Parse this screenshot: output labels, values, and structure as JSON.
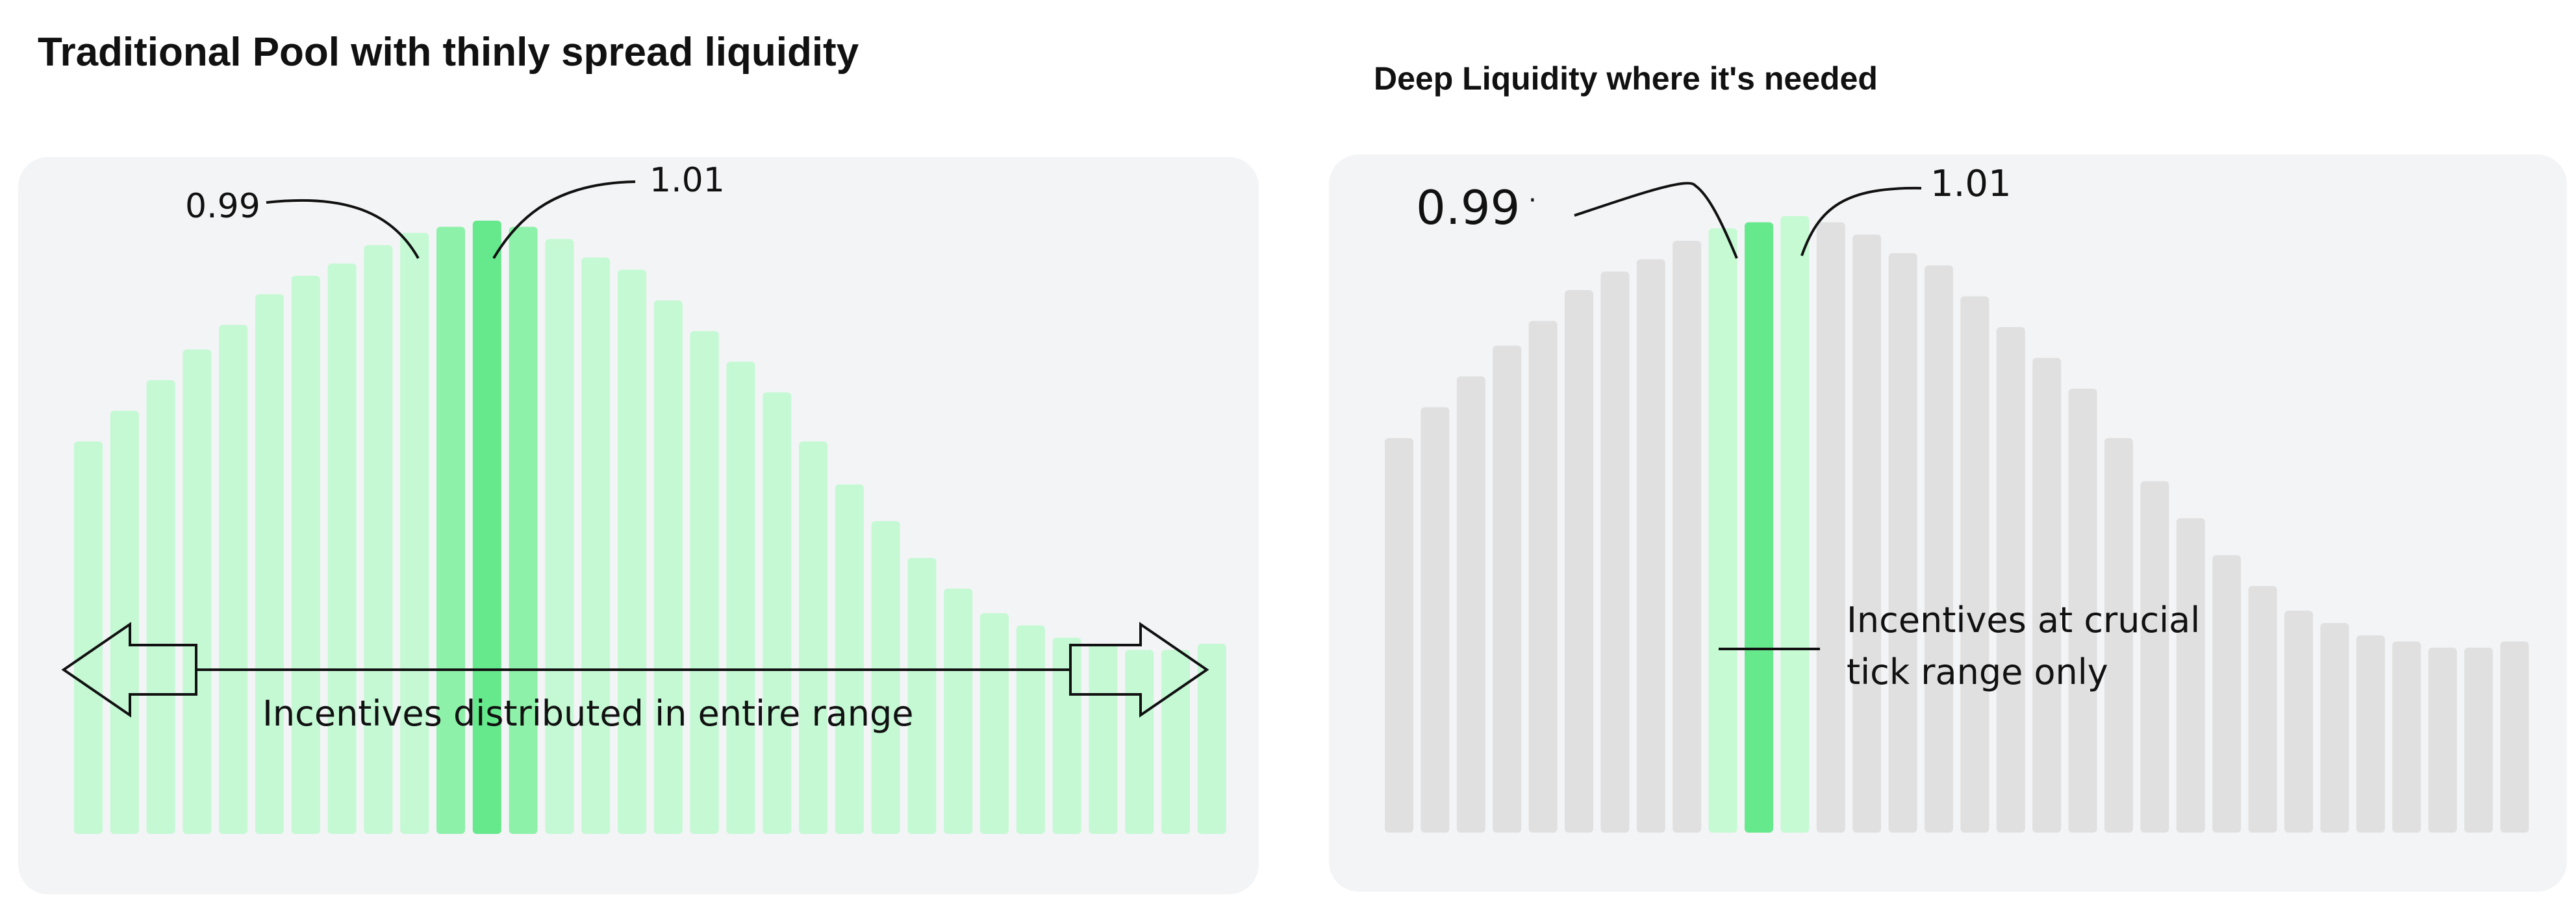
{
  "left_panel": {
    "title": "Traditional Pool with thinly spread liquidity",
    "label_low": "0.99",
    "label_high": "1.01",
    "caption": "Incentives distributed in entire range",
    "bars": [
      0.64,
      0.69,
      0.74,
      0.79,
      0.83,
      0.88,
      0.91,
      0.93,
      0.96,
      0.98,
      0.99,
      1.0,
      0.99,
      0.97,
      0.94,
      0.92,
      0.87,
      0.82,
      0.77,
      0.72,
      0.64,
      0.57,
      0.51,
      0.45,
      0.4,
      0.36,
      0.34,
      0.32,
      0.31,
      0.3,
      0.3,
      0.31
    ],
    "highlight_strong": [
      11
    ],
    "highlight_medium": [
      10,
      12
    ],
    "colors": {
      "bar": "#c4f9d4",
      "medium": "#8ef1a9",
      "strong": "#66e98c"
    }
  },
  "right_panel": {
    "title": "Deep Liquidity where it's needed",
    "label_low": "0.99",
    "label_high": "1.01",
    "caption_line1": "Incentives at crucial",
    "caption_line2": "tick range only",
    "bars": [
      0.64,
      0.69,
      0.74,
      0.79,
      0.83,
      0.88,
      0.91,
      0.93,
      0.96,
      0.98,
      0.99,
      1.0,
      0.99,
      0.97,
      0.94,
      0.92,
      0.87,
      0.82,
      0.77,
      0.72,
      0.64,
      0.57,
      0.51,
      0.45,
      0.4,
      0.36,
      0.34,
      0.32,
      0.31,
      0.3,
      0.3,
      0.31
    ],
    "highlight_strong": [
      10
    ],
    "highlight_medium": [
      9,
      11
    ],
    "colors": {
      "bar": "#e0e0e0",
      "medium": "#c5fad3",
      "strong": "#66e98c"
    }
  }
}
